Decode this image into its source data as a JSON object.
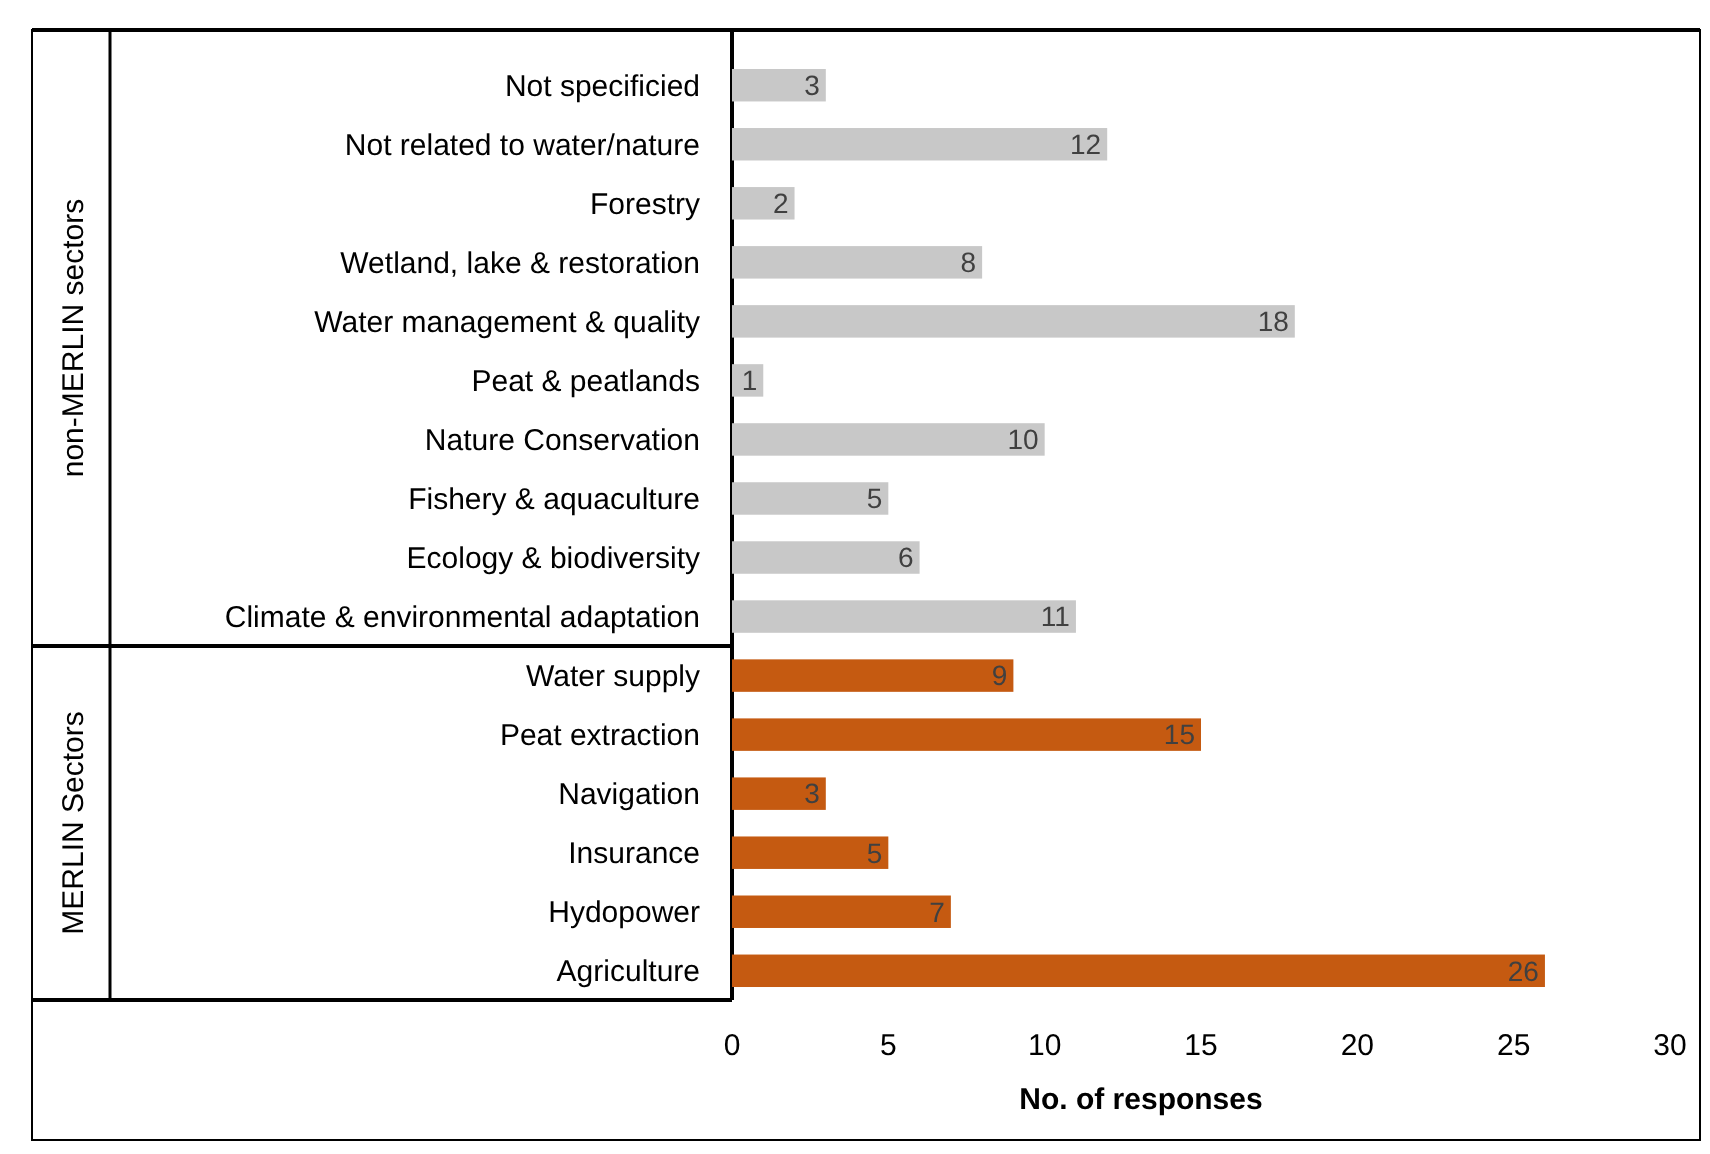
{
  "chart_data": {
    "type": "bar",
    "orientation": "horizontal",
    "xlabel": "No. of responses",
    "categories": [
      "Not specificied",
      "Not related to water/nature",
      "Forestry",
      "Wetland, lake & restoration",
      "Water management & quality",
      "Peat & peatlands",
      "Nature Conservation",
      "Fishery & aquaculture",
      "Ecology & biodiversity",
      "Climate & environmental adaptation",
      "Water supply",
      "Peat extraction",
      "Navigation",
      "Insurance",
      "Hydopower",
      "Agriculture"
    ],
    "values": [
      3,
      12,
      2,
      8,
      18,
      1,
      10,
      5,
      6,
      11,
      9,
      15,
      3,
      5,
      7,
      26
    ],
    "colors": [
      "#c8c8c8",
      "#c8c8c8",
      "#c8c8c8",
      "#c8c8c8",
      "#c8c8c8",
      "#c8c8c8",
      "#c8c8c8",
      "#c8c8c8",
      "#c8c8c8",
      "#c8c8c8",
      "#c55a11",
      "#c55a11",
      "#c55a11",
      "#c55a11",
      "#c55a11",
      "#c55a11"
    ],
    "annotations": [
      "non-MERLIN sectors",
      "MERLIN Sectors"
    ],
    "xlim": [
      0,
      30
    ],
    "xticks": [
      0,
      5,
      10,
      15,
      20,
      25,
      30
    ],
    "data_labels": true
  }
}
